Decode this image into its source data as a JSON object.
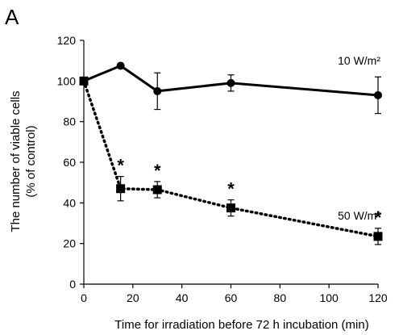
{
  "panel_label": "A",
  "chart_data": {
    "type": "line",
    "xlabel": "Time for irradiation before 72 h incubation (min)",
    "ylabel_line1": "The number of viable cells",
    "ylabel_line2": "(% of control)",
    "xlim": [
      0,
      120
    ],
    "ylim": [
      0,
      120
    ],
    "xticks": [
      "0",
      "20",
      "40",
      "60",
      "80",
      "100",
      "120"
    ],
    "yticks": [
      "0",
      "20",
      "40",
      "60",
      "80",
      "100",
      "120"
    ],
    "grid": false,
    "series": [
      {
        "name": "10 W/m²",
        "line_style": "solid",
        "marker": "circle",
        "color": "#000000",
        "x": [
          0,
          15,
          30,
          60,
          120
        ],
        "y": [
          100,
          107.5,
          95,
          99,
          93
        ],
        "err": [
          0,
          0,
          9,
          4,
          9
        ],
        "significance": [
          "",
          "",
          "",
          "",
          ""
        ]
      },
      {
        "name": "50 W/m²",
        "line_style": "dotted",
        "marker": "square",
        "color": "#000000",
        "x": [
          0,
          15,
          30,
          60,
          120
        ],
        "y": [
          100,
          47,
          46.5,
          37.5,
          23.5
        ],
        "err": [
          0,
          6,
          4,
          4,
          4
        ],
        "significance": [
          "",
          "*",
          "*",
          "*",
          "*"
        ]
      }
    ]
  }
}
